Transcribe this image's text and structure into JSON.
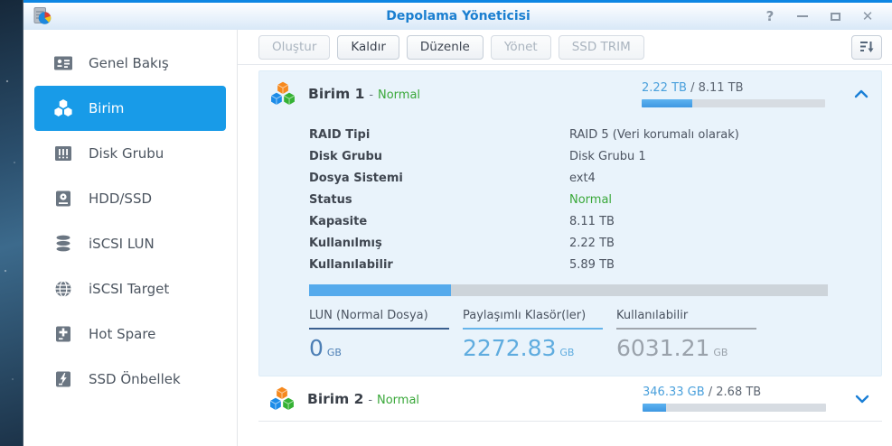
{
  "titlebar": {
    "title": "Depolama Yöneticisi",
    "controls": {
      "help": "?",
      "close": "✕"
    }
  },
  "sidebar": {
    "items": [
      {
        "label": "Genel Bakış",
        "icon": "overview-icon",
        "selected": false
      },
      {
        "label": "Birim",
        "icon": "volume-icon",
        "selected": true
      },
      {
        "label": "Disk Grubu",
        "icon": "disk-group-icon",
        "selected": false
      },
      {
        "label": "HDD/SSD",
        "icon": "hdd-ssd-icon",
        "selected": false
      },
      {
        "label": "iSCSI LUN",
        "icon": "iscsi-lun-icon",
        "selected": false
      },
      {
        "label": "iSCSI Target",
        "icon": "iscsi-target-icon",
        "selected": false
      },
      {
        "label": "Hot Spare",
        "icon": "hot-spare-icon",
        "selected": false
      },
      {
        "label": "SSD Önbellek",
        "icon": "ssd-cache-icon",
        "selected": false
      }
    ]
  },
  "toolbar": {
    "buttons": [
      {
        "label": "Oluştur",
        "enabled": false
      },
      {
        "label": "Kaldır",
        "enabled": true
      },
      {
        "label": "Düzenle",
        "enabled": true
      },
      {
        "label": "Yönet",
        "enabled": false
      },
      {
        "label": "SSD TRIM",
        "enabled": false
      }
    ]
  },
  "volumes": [
    {
      "name": "Birim 1",
      "status_sep": "-",
      "status": "Normal",
      "used_text": "2.22 TB",
      "total_text": "/ 8.11 TB",
      "used_pct": 27.4,
      "expanded": true,
      "details": [
        {
          "label": "RAID Tipi",
          "value": "RAID 5 (Veri korumalı olarak)"
        },
        {
          "label": "Disk Grubu",
          "value": "Disk Grubu 1"
        },
        {
          "label": "Dosya Sistemi",
          "value": "ext4"
        },
        {
          "label": "Status",
          "value": "Normal"
        },
        {
          "label": "Kapasite",
          "value": "8.11 TB"
        },
        {
          "label": "Kullanılmış",
          "value": "2.22 TB"
        },
        {
          "label": "Kullanılabilir",
          "value": "5.89 TB"
        }
      ],
      "usage_bar_pct": 27.4,
      "stats": [
        {
          "label": "LUN (Normal Dosya)",
          "value": "0",
          "unit": "GB"
        },
        {
          "label": "Paylaşımlı Klasör(ler)",
          "value": "2272.83",
          "unit": "GB"
        },
        {
          "label": "Kullanılabilir",
          "value": "6031.21",
          "unit": "GB"
        }
      ]
    },
    {
      "name": "Birim 2",
      "status_sep": "-",
      "status": "Normal",
      "used_text": "346.33 GB",
      "total_text": "/ 2.68 TB",
      "used_pct": 12.6,
      "expanded": false
    }
  ],
  "colors": {
    "accent": "#189be8",
    "title_blue": "#1b7fd0",
    "status_ok": "#3aa83a",
    "bar_fill": "#47a2e8"
  }
}
